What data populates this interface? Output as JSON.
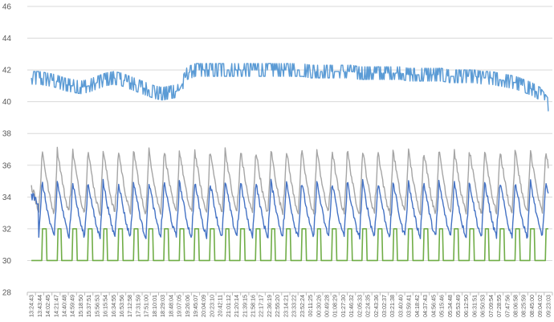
{
  "chart_data": {
    "type": "line",
    "title": "",
    "xlabel": "",
    "ylabel": "",
    "ylim": [
      28,
      46
    ],
    "ytick_step": 2,
    "grid": true,
    "legend": "none",
    "x_ticks": [
      "13:24:43",
      "13:43:44",
      "14:02:45",
      "14:21:47",
      "14:40:48",
      "14:59:49",
      "15:18:50",
      "15:37:51",
      "15:56:53",
      "16:15:54",
      "16:34:55",
      "16:53:56",
      "17:12:58",
      "17:31:59",
      "17:51:00",
      "18:10:01",
      "18:29:03",
      "18:48:04",
      "19:07:05",
      "19:26:06",
      "19:45:07",
      "20:04:09",
      "20:23:10",
      "20:42:11",
      "21:01:12",
      "21:20:14",
      "21:39:15",
      "21:58:16",
      "22:17:17",
      "22:36:19",
      "22:55:20",
      "23:14:21",
      "23:33:22",
      "23:52:24",
      "00:11:25",
      "00:30:26",
      "00:49:28",
      "01:08:29",
      "01:27:30",
      "01:46:32",
      "02:05:33",
      "02:24:35",
      "02:43:36",
      "03:02:37",
      "03:21:38",
      "03:40:40",
      "03:59:41",
      "04:18:42",
      "04:37:43",
      "04:56:45",
      "05:15:46",
      "05:34:48",
      "05:53:49",
      "06:12:50",
      "06:31:51",
      "06:50:53",
      "07:09:54",
      "07:28:55",
      "07:47:56",
      "08:06:58",
      "08:25:59",
      "08:45:00",
      "09:04:02",
      "09:23:03"
    ],
    "series": [
      {
        "color": "#5b9bd5",
        "style": "noisy-level",
        "values": [
          41.5,
          41.5,
          41.4,
          41.3,
          41.1,
          41.0,
          40.9,
          41.0,
          41.2,
          41.4,
          41.5,
          41.4,
          41.2,
          41.0,
          40.8,
          40.6,
          40.5,
          40.6,
          40.7,
          41.8,
          42.0,
          42.0,
          42.0,
          42.0,
          42.0,
          42.0,
          42.0,
          42.0,
          42.0,
          42.0,
          42.0,
          42.0,
          42.0,
          42.0,
          41.9,
          41.9,
          41.9,
          41.9,
          41.9,
          41.9,
          41.8,
          41.8,
          41.8,
          41.8,
          41.8,
          41.8,
          41.7,
          41.7,
          41.7,
          41.7,
          41.7,
          41.6,
          41.6,
          41.6,
          41.6,
          41.5,
          41.5,
          41.4,
          41.3,
          41.2,
          41.0,
          40.8,
          40.5,
          39.8
        ],
        "noise": 0.6
      },
      {
        "color": "#a5a5a5",
        "style": "sawtooth",
        "period": 1.86,
        "peak": 37.0,
        "trough": 33.9,
        "start_level": 33.0
      },
      {
        "color": "#4472c4",
        "style": "sawtooth",
        "period": 1.86,
        "peak": 35.0,
        "trough": 32.4,
        "start_level": 33.5
      },
      {
        "color": "#70ad47",
        "style": "pulse",
        "period": 1.86,
        "high": 32.0,
        "low": 30.0,
        "duty": 0.28
      }
    ]
  }
}
